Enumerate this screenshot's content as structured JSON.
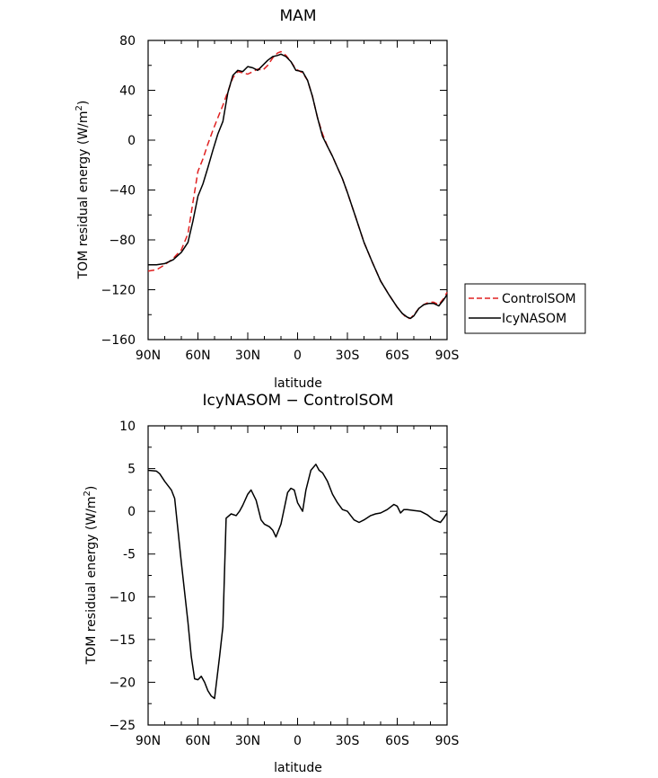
{
  "chart_data": [
    {
      "type": "line",
      "title": "MAM",
      "xlabel": "latitude",
      "ylabel_main": "TOM residual energy (W/m",
      "ylabel_sup": "2",
      "ylabel_close": ")",
      "x_ticks": [
        "90N",
        "60N",
        "30N",
        "0",
        "30S",
        "60S",
        "90S"
      ],
      "x_tick_values": [
        90,
        60,
        30,
        0,
        -30,
        -60,
        -90
      ],
      "y_ticks": [
        "80",
        "40",
        "0",
        "−40",
        "−80",
        "−120",
        "−160"
      ],
      "y_tick_values": [
        80,
        40,
        0,
        -40,
        -80,
        -120,
        -160
      ],
      "xlim": [
        90,
        -90
      ],
      "ylim": [
        -160,
        80
      ],
      "legend": {
        "placement": "right",
        "entries": [
          "ControlSOM",
          "IcyNASOM"
        ]
      },
      "series": [
        {
          "name": "ControlSOM",
          "color": "#e02020",
          "dashed": true,
          "x": [
            90,
            85,
            80,
            75,
            70,
            66,
            63,
            60,
            57,
            54,
            51,
            48,
            45,
            42,
            39,
            36,
            33,
            30,
            27,
            24,
            21,
            18,
            15,
            12,
            10,
            7,
            4,
            1,
            -3,
            -6,
            -9,
            -12,
            -15,
            -18,
            -21,
            -24,
            -27,
            -30,
            -35,
            -40,
            -45,
            -50,
            -55,
            -60,
            -63,
            -66,
            -68,
            -70,
            -73,
            -76,
            -79,
            -82,
            -85,
            -88,
            -90
          ],
          "y": [
            -105,
            -104,
            -100,
            -95,
            -88,
            -75,
            -50,
            -25,
            -15,
            -3,
            8,
            18,
            28,
            39,
            50,
            55,
            54,
            53,
            55,
            57,
            56,
            60,
            66,
            70,
            71,
            68,
            63,
            57,
            54,
            48,
            35,
            18,
            5,
            -5,
            -13,
            -22,
            -31,
            -42,
            -62,
            -82,
            -98,
            -113,
            -124,
            -134,
            -139,
            -143,
            -143,
            -140,
            -135,
            -132,
            -130,
            -130,
            -132,
            -127,
            -122
          ]
        },
        {
          "name": "IcyNASOM",
          "color": "#000000",
          "dashed": false,
          "x": [
            90,
            85,
            80,
            75,
            70,
            66,
            63,
            60,
            57,
            54,
            51,
            48,
            45,
            42,
            39,
            36,
            33,
            30,
            27,
            24,
            21,
            18,
            15,
            12,
            10,
            7,
            4,
            1,
            -3,
            -6,
            -9,
            -12,
            -15,
            -18,
            -21,
            -24,
            -27,
            -30,
            -35,
            -40,
            -45,
            -50,
            -55,
            -60,
            -63,
            -66,
            -68,
            -70,
            -73,
            -76,
            -79,
            -82,
            -85,
            -88,
            -90
          ],
          "y": [
            -100,
            -100,
            -99,
            -96,
            -90,
            -82,
            -65,
            -45,
            -35,
            -22,
            -8,
            5,
            15,
            38,
            52,
            56,
            55,
            59,
            58,
            56,
            60,
            64,
            67,
            68,
            69,
            67,
            63,
            56,
            55,
            48,
            35,
            18,
            3,
            -5,
            -13,
            -22,
            -31,
            -42,
            -62,
            -82,
            -98,
            -113,
            -124,
            -134,
            -139,
            -142,
            -143,
            -141,
            -135,
            -132,
            -131,
            -131,
            -133,
            -128,
            -124
          ]
        }
      ]
    },
    {
      "type": "line",
      "title": "IcyNASOM − ControlSOM",
      "xlabel": "latitude",
      "ylabel_main": "TOM residual energy (W/m",
      "ylabel_sup": "2",
      "ylabel_close": ")",
      "x_ticks": [
        "90N",
        "60N",
        "30N",
        "0",
        "30S",
        "60S",
        "90S"
      ],
      "x_tick_values": [
        90,
        60,
        30,
        0,
        -30,
        -60,
        -90
      ],
      "y_ticks": [
        "10",
        "5",
        "0",
        "-5",
        "−10",
        "−15",
        "−20",
        "−25"
      ],
      "y_tick_values": [
        10,
        5,
        0,
        -5,
        -10,
        -15,
        -20,
        -25
      ],
      "xlim": [
        90,
        -90
      ],
      "ylim": [
        -25,
        10
      ],
      "series": [
        {
          "color": "#000000",
          "dashed": false,
          "x": [
            90,
            85,
            83,
            80,
            76,
            74,
            70,
            66,
            64,
            62,
            60,
            58,
            56,
            54,
            52,
            50,
            47,
            45,
            43,
            40,
            37,
            35,
            33,
            30,
            28,
            25,
            22,
            20,
            17,
            15,
            13,
            10,
            6,
            4,
            2,
            0,
            -3,
            -5,
            -8,
            -11,
            -13,
            -15,
            -18,
            -21,
            -24,
            -27,
            -30,
            -34,
            -37,
            -40,
            -44,
            -47,
            -50,
            -54,
            -58,
            -60,
            -62,
            -64,
            -66,
            -70,
            -74,
            -78,
            -82,
            -86,
            -88,
            -90
          ],
          "y": [
            4.8,
            4.7,
            4.4,
            3.5,
            2.5,
            1.5,
            -6,
            -13,
            -17,
            -19.6,
            -19.7,
            -19.3,
            -20,
            -21,
            -21.6,
            -21.9,
            -17,
            -13.5,
            -0.8,
            -0.3,
            -0.5,
            0,
            0.7,
            2,
            2.5,
            1.3,
            -1,
            -1.5,
            -1.8,
            -2.2,
            -3,
            -1.5,
            2.2,
            2.7,
            2.5,
            1,
            0,
            2.5,
            4.8,
            5.5,
            4.8,
            4.5,
            3.5,
            2,
            1,
            0.2,
            0,
            -1,
            -1.3,
            -1,
            -0.5,
            -0.3,
            -0.2,
            0.2,
            0.8,
            0.6,
            -0.2,
            0.2,
            0.2,
            0.1,
            0,
            -0.4,
            -1,
            -1.3,
            -0.8,
            -0.2
          ]
        }
      ]
    }
  ]
}
